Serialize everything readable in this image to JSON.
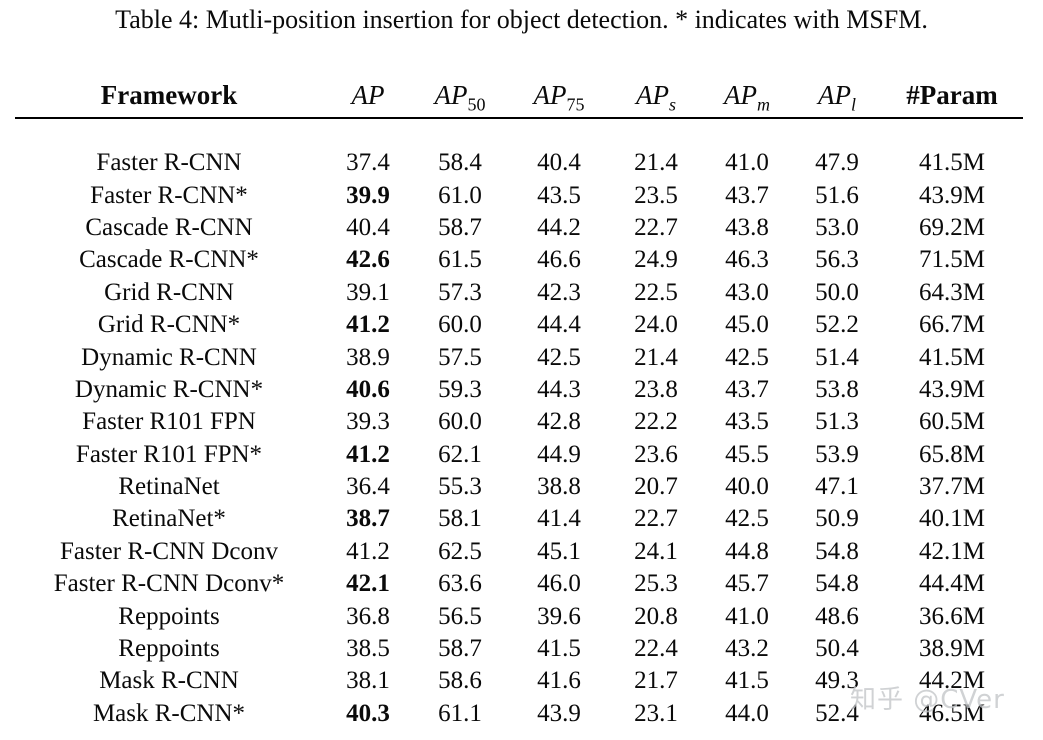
{
  "caption": "Table 4: Mutli-position insertion for object detection. * indicates with MSFM.",
  "table": {
    "headers": [
      {
        "label": "Framework"
      },
      {
        "base": "AP",
        "sub": ""
      },
      {
        "base": "AP",
        "sub": "50"
      },
      {
        "base": "AP",
        "sub": "75"
      },
      {
        "base": "AP",
        "sub": "s"
      },
      {
        "base": "AP",
        "sub": "m"
      },
      {
        "base": "AP",
        "sub": "l"
      },
      {
        "label": "#Param"
      }
    ],
    "rows": [
      {
        "cells": [
          "Faster R-CNN",
          "37.4",
          "58.4",
          "40.4",
          "21.4",
          "41.0",
          "47.9",
          "41.5M"
        ],
        "ap_bold": false
      },
      {
        "cells": [
          "Faster R-CNN*",
          "39.9",
          "61.0",
          "43.5",
          "23.5",
          "43.7",
          "51.6",
          "43.9M"
        ],
        "ap_bold": true
      },
      {
        "cells": [
          "Cascade R-CNN",
          "40.4",
          "58.7",
          "44.2",
          "22.7",
          "43.8",
          "53.0",
          "69.2M"
        ],
        "ap_bold": false
      },
      {
        "cells": [
          "Cascade R-CNN*",
          "42.6",
          "61.5",
          "46.6",
          "24.9",
          "46.3",
          "56.3",
          "71.5M"
        ],
        "ap_bold": true
      },
      {
        "cells": [
          "Grid R-CNN",
          "39.1",
          "57.3",
          "42.3",
          "22.5",
          "43.0",
          "50.0",
          "64.3M"
        ],
        "ap_bold": false
      },
      {
        "cells": [
          "Grid R-CNN*",
          "41.2",
          "60.0",
          "44.4",
          "24.0",
          "45.0",
          "52.2",
          "66.7M"
        ],
        "ap_bold": true
      },
      {
        "cells": [
          "Dynamic R-CNN",
          "38.9",
          "57.5",
          "42.5",
          "21.4",
          "42.5",
          "51.4",
          "41.5M"
        ],
        "ap_bold": false
      },
      {
        "cells": [
          "Dynamic R-CNN*",
          "40.6",
          "59.3",
          "44.3",
          "23.8",
          "43.7",
          "53.8",
          "43.9M"
        ],
        "ap_bold": true
      },
      {
        "cells": [
          "Faster R101 FPN",
          "39.3",
          "60.0",
          "42.8",
          "22.2",
          "43.5",
          "51.3",
          "60.5M"
        ],
        "ap_bold": false
      },
      {
        "cells": [
          "Faster R101 FPN*",
          "41.2",
          "62.1",
          "44.9",
          "23.6",
          "45.5",
          "53.9",
          "65.8M"
        ],
        "ap_bold": true
      },
      {
        "cells": [
          "RetinaNet",
          "36.4",
          "55.3",
          "38.8",
          "20.7",
          "40.0",
          "47.1",
          "37.7M"
        ],
        "ap_bold": false
      },
      {
        "cells": [
          "RetinaNet*",
          "38.7",
          "58.1",
          "41.4",
          "22.7",
          "42.5",
          "50.9",
          "40.1M"
        ],
        "ap_bold": true
      },
      {
        "cells": [
          "Faster R-CNN Dconv",
          "41.2",
          "62.5",
          "45.1",
          "24.1",
          "44.8",
          "54.8",
          "42.1M"
        ],
        "ap_bold": false
      },
      {
        "cells": [
          "Faster R-CNN Dconv*",
          "42.1",
          "63.6",
          "46.0",
          "25.3",
          "45.7",
          "54.8",
          "44.4M"
        ],
        "ap_bold": true
      },
      {
        "cells": [
          "Reppoints",
          "36.8",
          "56.5",
          "39.6",
          "20.8",
          "41.0",
          "48.6",
          "36.6M"
        ],
        "ap_bold": false
      },
      {
        "cells": [
          "Reppoints",
          "38.5",
          "58.7",
          "41.5",
          "22.4",
          "43.2",
          "50.4",
          "38.9M"
        ],
        "ap_bold": false
      },
      {
        "cells": [
          "Mask R-CNN",
          "38.1",
          "58.6",
          "41.6",
          "21.7",
          "41.5",
          "49.3",
          "44.2M"
        ],
        "ap_bold": false
      },
      {
        "cells": [
          "Mask R-CNN*",
          "40.3",
          "61.1",
          "43.9",
          "23.1",
          "44.0",
          "52.4",
          "46.5M"
        ],
        "ap_bold": true
      }
    ]
  },
  "watermark": {
    "text": "知乎 @CVer",
    "color": "#c3c6c9"
  }
}
